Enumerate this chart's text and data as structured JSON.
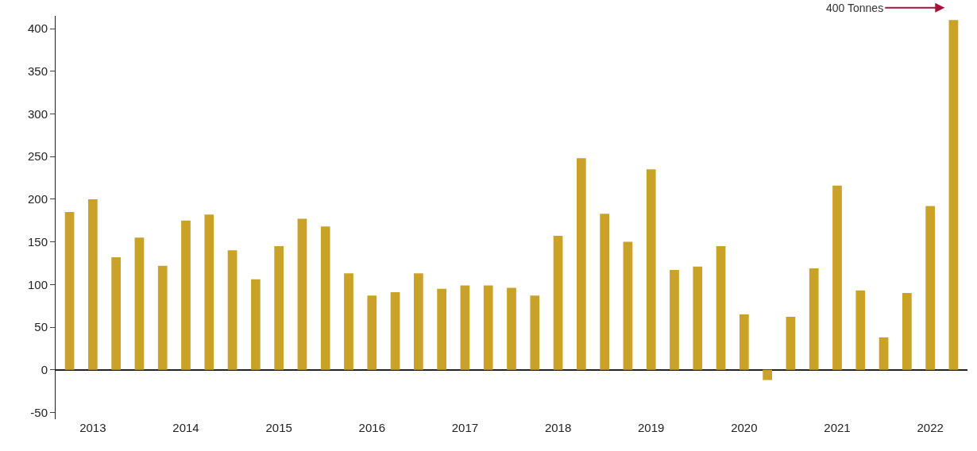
{
  "chart_data": {
    "type": "bar",
    "categories": [
      null,
      "2013",
      null,
      null,
      null,
      "2014",
      null,
      null,
      null,
      "2015",
      null,
      null,
      null,
      "2016",
      null,
      null,
      null,
      "2017",
      null,
      null,
      null,
      "2018",
      null,
      null,
      null,
      "2019",
      null,
      null,
      null,
      "2020",
      null,
      null,
      null,
      "2021",
      null,
      null,
      null,
      "2022",
      null
    ],
    "values": [
      185,
      200,
      132,
      155,
      122,
      175,
      182,
      140,
      106,
      145,
      177,
      168,
      113,
      87,
      91,
      113,
      95,
      99,
      99,
      96,
      87,
      157,
      248,
      183,
      150,
      235,
      117,
      121,
      145,
      65,
      -12,
      62,
      119,
      216,
      93,
      38,
      90,
      192,
      410
    ],
    "color": "#c9a227",
    "ylim": [
      -58,
      415
    ],
    "yticks": [
      -50,
      0,
      50,
      100,
      150,
      200,
      250,
      300,
      350,
      400
    ],
    "annotations": [
      "400 Tonnes"
    ]
  }
}
